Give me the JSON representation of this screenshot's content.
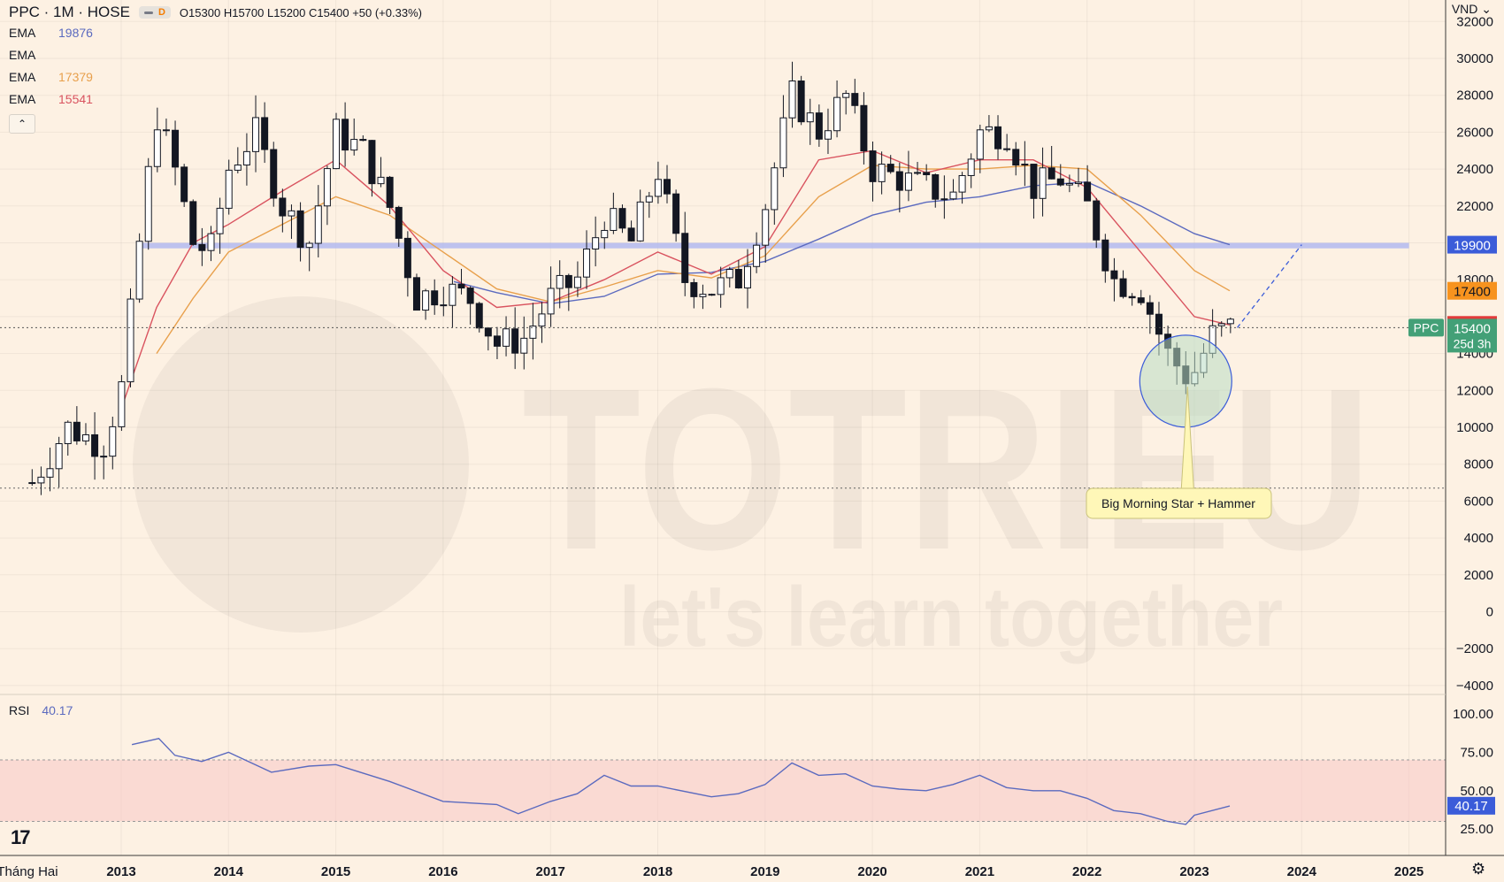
{
  "header": {
    "symbol": "PPC · 1M · HOSE",
    "interval_badge": "D",
    "ohlc": {
      "o_label": "O",
      "o": "15300",
      "h_label": "H",
      "h": "15700",
      "l_label": "L",
      "l": "15200",
      "c_label": "C",
      "c": "15400",
      "change": "+50 (+0.33%)"
    }
  },
  "indicators": [
    {
      "label": "EMA",
      "value": "19876",
      "color": "#5b6abf"
    },
    {
      "label": "EMA",
      "value": "",
      "color": "#131722"
    },
    {
      "label": "EMA",
      "value": "17379",
      "color": "#e8a04c"
    },
    {
      "label": "EMA",
      "value": "15541",
      "color": "#d9535f"
    }
  ],
  "collapse_glyph": "⌃",
  "currency": "VND ⌄",
  "watermark": {
    "brand": "TOTRIEU",
    "tagline": "let's learn together"
  },
  "rsi": {
    "label": "RSI",
    "value": "40.17",
    "axis_value": "40.17"
  },
  "annotation": {
    "text": "Big Morning Star + Hammer"
  },
  "price_tags": [
    {
      "value": "19900",
      "bg": "#3b5cd9",
      "fg": "#ffffff"
    },
    {
      "value": "17400",
      "bg": "#f7931e",
      "fg": "#131722"
    },
    {
      "value": "15550",
      "bg": "#e23b3b",
      "fg": "#ffffff"
    },
    {
      "value": "15400",
      "bg": "#43a077",
      "fg": "#ffffff",
      "sub": "25d 3h",
      "symbol": "PPC"
    }
  ],
  "tv_logo": "17",
  "settings_icon": "⚙",
  "chart_data": {
    "type": "candlestick",
    "interval": "1M",
    "y_axis": {
      "ticks": [
        32000,
        30000,
        28000,
        26000,
        24000,
        22000,
        20000,
        18000,
        16000,
        14000,
        12000,
        10000,
        8000,
        6000,
        4000,
        2000,
        0,
        -2000,
        -4000
      ],
      "labels": [
        "32000",
        "30000",
        "28000",
        "26000",
        "24000",
        "22000",
        "",
        "18000",
        "",
        "14000",
        "12000",
        "10000",
        "8000",
        "6000",
        "4000",
        "2000",
        "0",
        "−2000",
        "−4000"
      ]
    },
    "x_axis": {
      "labels": [
        {
          "t": 2012.08,
          "text": "Tháng Hai"
        },
        {
          "t": 2013,
          "text": "2013"
        },
        {
          "t": 2014,
          "text": "2014"
        },
        {
          "t": 2015,
          "text": "2015"
        },
        {
          "t": 2016,
          "text": "2016"
        },
        {
          "t": 2017,
          "text": "2017"
        },
        {
          "t": 2018,
          "text": "2018"
        },
        {
          "t": 2019,
          "text": "2019"
        },
        {
          "t": 2020,
          "text": "2020"
        },
        {
          "t": 2021,
          "text": "2021"
        },
        {
          "t": 2022,
          "text": "2022"
        },
        {
          "t": 2023,
          "text": "2023"
        },
        {
          "t": 2024,
          "text": "2024"
        },
        {
          "t": 2025,
          "text": "2025"
        }
      ]
    },
    "resistance_zone": {
      "from": 20000,
      "to": 19700,
      "t_start": 2013.18,
      "t_end": 2025.0
    },
    "last_price": 15400,
    "projection": {
      "from": {
        "t": 2023.4,
        "v": 15400
      },
      "to": {
        "t": 2024.0,
        "v": 19900
      }
    },
    "highlight_circle": {
      "t": 2022.92,
      "v": 12500
    },
    "candles_anchor": [
      [
        2012.17,
        7000
      ],
      [
        2012.5,
        10000
      ],
      [
        2012.83,
        9000
      ],
      [
        2013.0,
        12000
      ],
      [
        2013.17,
        20000
      ],
      [
        2013.33,
        27000
      ],
      [
        2013.5,
        24000
      ],
      [
        2013.67,
        20000
      ],
      [
        2013.83,
        19500
      ],
      [
        2014.0,
        24000
      ],
      [
        2014.25,
        26000
      ],
      [
        2014.5,
        22000
      ],
      [
        2014.75,
        20000
      ],
      [
        2015.0,
        26000
      ],
      [
        2015.25,
        25000
      ],
      [
        2015.5,
        22000
      ],
      [
        2015.75,
        17000
      ],
      [
        2016.0,
        17500
      ],
      [
        2016.25,
        17000
      ],
      [
        2016.5,
        14500
      ],
      [
        2016.75,
        14800
      ],
      [
        2017.0,
        17000
      ],
      [
        2017.25,
        18000
      ],
      [
        2017.5,
        21500
      ],
      [
        2017.75,
        20000
      ],
      [
        2018.0,
        24000
      ],
      [
        2018.25,
        18000
      ],
      [
        2018.5,
        17500
      ],
      [
        2018.75,
        18000
      ],
      [
        2019.0,
        22000
      ],
      [
        2019.25,
        28000
      ],
      [
        2019.5,
        26000
      ],
      [
        2019.75,
        28000
      ],
      [
        2020.0,
        24000
      ],
      [
        2020.25,
        23500
      ],
      [
        2020.5,
        23000
      ],
      [
        2020.75,
        22500
      ],
      [
        2021.0,
        26000
      ],
      [
        2021.25,
        26000
      ],
      [
        2021.5,
        23000
      ],
      [
        2021.75,
        23500
      ],
      [
        2022.0,
        22000
      ],
      [
        2022.25,
        18000
      ],
      [
        2022.5,
        17500
      ],
      [
        2022.75,
        14000
      ],
      [
        2022.92,
        12800
      ],
      [
        2023.0,
        13000
      ],
      [
        2023.17,
        15000
      ],
      [
        2023.33,
        15400
      ]
    ],
    "ema_lines": [
      {
        "name": "EMA",
        "value": "19876",
        "color": "#5b6abf",
        "points": [
          [
            2016.1,
            17900
          ],
          [
            2016.5,
            17300
          ],
          [
            2017.0,
            16700
          ],
          [
            2017.5,
            17100
          ],
          [
            2018.0,
            18300
          ],
          [
            2018.5,
            18400
          ],
          [
            2019.0,
            19000
          ],
          [
            2019.5,
            20200
          ],
          [
            2020.0,
            21500
          ],
          [
            2020.5,
            22200
          ],
          [
            2021.0,
            22500
          ],
          [
            2021.5,
            23100
          ],
          [
            2022.0,
            23300
          ],
          [
            2022.5,
            22000
          ],
          [
            2023.0,
            20500
          ],
          [
            2023.33,
            19900
          ]
        ]
      },
      {
        "name": "EMA",
        "value": "17379",
        "color": "#e8a04c",
        "points": [
          [
            2013.33,
            14000
          ],
          [
            2013.67,
            17000
          ],
          [
            2014.0,
            19500
          ],
          [
            2014.5,
            21000
          ],
          [
            2015.0,
            22500
          ],
          [
            2015.5,
            21500
          ],
          [
            2016.0,
            19500
          ],
          [
            2016.5,
            17500
          ],
          [
            2017.0,
            16800
          ],
          [
            2017.5,
            17600
          ],
          [
            2018.0,
            18500
          ],
          [
            2018.5,
            18100
          ],
          [
            2019.0,
            19300
          ],
          [
            2019.5,
            22500
          ],
          [
            2020.0,
            24200
          ],
          [
            2020.5,
            24000
          ],
          [
            2021.0,
            24000
          ],
          [
            2021.5,
            24200
          ],
          [
            2022.0,
            24000
          ],
          [
            2022.5,
            21500
          ],
          [
            2023.0,
            18500
          ],
          [
            2023.33,
            17400
          ]
        ]
      },
      {
        "name": "EMA",
        "value": "15541",
        "color": "#d9535f",
        "points": [
          [
            2013.0,
            11000
          ],
          [
            2013.33,
            16500
          ],
          [
            2013.67,
            20000
          ],
          [
            2014.0,
            21000
          ],
          [
            2014.5,
            22800
          ],
          [
            2015.0,
            24500
          ],
          [
            2015.5,
            22000
          ],
          [
            2016.0,
            18500
          ],
          [
            2016.5,
            16500
          ],
          [
            2017.0,
            16800
          ],
          [
            2017.5,
            18000
          ],
          [
            2018.0,
            19500
          ],
          [
            2018.5,
            18300
          ],
          [
            2019.0,
            19800
          ],
          [
            2019.5,
            24500
          ],
          [
            2020.0,
            25000
          ],
          [
            2020.5,
            23800
          ],
          [
            2021.0,
            24500
          ],
          [
            2021.5,
            24500
          ],
          [
            2022.0,
            23000
          ],
          [
            2022.5,
            19500
          ],
          [
            2023.0,
            16000
          ],
          [
            2023.33,
            15550
          ]
        ]
      }
    ],
    "rsi_panel": {
      "ticks": [
        100,
        75,
        50,
        25
      ],
      "labels": [
        "100.00",
        "75.00",
        "50.00",
        "25.00"
      ],
      "band": [
        70,
        30
      ],
      "value": 40.17,
      "points": [
        [
          2013.1,
          80
        ],
        [
          2013.35,
          84
        ],
        [
          2013.5,
          73
        ],
        [
          2013.75,
          69
        ],
        [
          2014.0,
          75
        ],
        [
          2014.4,
          62
        ],
        [
          2014.75,
          66
        ],
        [
          2015.0,
          67
        ],
        [
          2015.5,
          56
        ],
        [
          2016.0,
          43
        ],
        [
          2016.5,
          41
        ],
        [
          2016.7,
          35
        ],
        [
          2017.0,
          43
        ],
        [
          2017.25,
          48
        ],
        [
          2017.5,
          60
        ],
        [
          2017.75,
          53
        ],
        [
          2018.0,
          53
        ],
        [
          2018.5,
          46
        ],
        [
          2018.75,
          48
        ],
        [
          2019.0,
          54
        ],
        [
          2019.25,
          68
        ],
        [
          2019.5,
          60
        ],
        [
          2019.75,
          61
        ],
        [
          2020.0,
          53
        ],
        [
          2020.25,
          51
        ],
        [
          2020.5,
          50
        ],
        [
          2020.75,
          54
        ],
        [
          2021.0,
          60
        ],
        [
          2021.25,
          52
        ],
        [
          2021.5,
          50
        ],
        [
          2021.75,
          50
        ],
        [
          2022.0,
          45
        ],
        [
          2022.25,
          37
        ],
        [
          2022.5,
          35
        ],
        [
          2022.75,
          30
        ],
        [
          2022.92,
          28
        ],
        [
          2023.0,
          34
        ],
        [
          2023.33,
          40
        ]
      ]
    }
  }
}
